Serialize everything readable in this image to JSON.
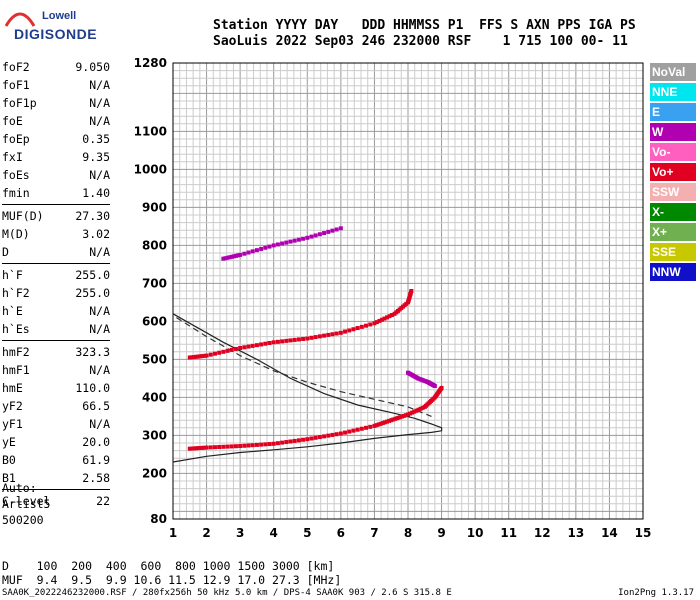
{
  "logo": {
    "line1": "Lowell",
    "line2": "DIGISONDE"
  },
  "header": {
    "line1": "Station YYYY DAY   DDD HHMMSS P1  FFS S AXN PPS IGA PS",
    "line2": "SaoLuis 2022 Sep03 246 232000 RSF    1 715 100 00- 11"
  },
  "params": [
    {
      "k": "foF2",
      "v": "9.050"
    },
    {
      "k": "foF1",
      "v": "N/A"
    },
    {
      "k": "foF1p",
      "v": "N/A"
    },
    {
      "k": "foE",
      "v": "N/A"
    },
    {
      "k": "foEp",
      "v": "0.35"
    },
    {
      "k": "fxI",
      "v": "9.35"
    },
    {
      "k": "foEs",
      "v": "N/A"
    },
    {
      "k": "fmin",
      "v": "1.40"
    },
    {
      "k": "MUF(D)",
      "v": "27.30"
    },
    {
      "k": "M(D)",
      "v": "3.02"
    },
    {
      "k": "D",
      "v": "N/A"
    },
    {
      "k": "h`F",
      "v": "255.0"
    },
    {
      "k": "h`F2",
      "v": "255.0"
    },
    {
      "k": "h`E",
      "v": "N/A"
    },
    {
      "k": "h`Es",
      "v": "N/A"
    },
    {
      "k": "hmF2",
      "v": "323.3"
    },
    {
      "k": "hmF1",
      "v": "N/A"
    },
    {
      "k": "hmE",
      "v": "110.0"
    },
    {
      "k": "yF2",
      "v": "66.5"
    },
    {
      "k": "yF1",
      "v": "N/A"
    },
    {
      "k": "yE",
      "v": "20.0"
    },
    {
      "k": "B0",
      "v": "61.9"
    },
    {
      "k": "B1",
      "v": "2.58"
    },
    {
      "k": "C-level",
      "v": "22"
    }
  ],
  "auto": {
    "l1": "Auto:",
    "l2": "Artist5",
    "l3": "500200"
  },
  "legend": [
    {
      "label": "NoVal",
      "color": "#a0a0a0"
    },
    {
      "label": "NNE",
      "color": "#00e5ee"
    },
    {
      "label": "E",
      "color": "#3aa0f0"
    },
    {
      "label": "W",
      "color": "#b000b0"
    },
    {
      "label": "Vo-",
      "color": "#ff60c0"
    },
    {
      "label": "Vo+",
      "color": "#e00020"
    },
    {
      "label": "SSW",
      "color": "#f4b0b0"
    },
    {
      "label": "X-",
      "color": "#008800"
    },
    {
      "label": "X+",
      "color": "#70b050"
    },
    {
      "label": "SSE",
      "color": "#c8c800"
    },
    {
      "label": "NNW",
      "color": "#1010c8"
    }
  ],
  "footer": {
    "d_line": "D    100  200  400  600  800 1000 1500 3000 [km]",
    "muf_line": "MUF  9.4  9.5  9.9 10.6 11.5 12.9 17.0 27.3 [MHz]",
    "file_line": "SAA0K_2022246232000.RSF / 280fx256h 50 kHz 5.0 km / DPS-4 SAA0K 903 / 2.6 S 315.8 E",
    "version": "Ion2Png 1.3.17"
  },
  "chart_data": {
    "type": "scatter",
    "xlim": [
      1,
      15
    ],
    "ylim": [
      80,
      1280
    ],
    "x_ticks": [
      "1",
      "2",
      "3",
      "4",
      "5",
      "6",
      "7",
      "8",
      "9",
      "10",
      "11",
      "12",
      "13",
      "14",
      "15"
    ],
    "y_ticks": [
      "80",
      "200",
      "300",
      "400",
      "500",
      "600",
      "700",
      "800",
      "900",
      "1000",
      "1100",
      "1280"
    ],
    "grid": true,
    "traces": [
      {
        "name": "",
        "color": "#e00020",
        "points": [
          [
            1.5,
            265
          ],
          [
            2,
            268
          ],
          [
            3,
            272
          ],
          [
            4,
            278
          ],
          [
            5,
            290
          ],
          [
            6,
            305
          ],
          [
            7,
            325
          ],
          [
            7.5,
            340
          ],
          [
            8,
            355
          ],
          [
            8.5,
            375
          ],
          [
            8.8,
            400
          ],
          [
            9.0,
            425
          ]
        ]
      },
      {
        "name": "",
        "color": "#e00020",
        "points": [
          [
            1.5,
            505
          ],
          [
            2,
            510
          ],
          [
            3,
            530
          ],
          [
            4,
            545
          ],
          [
            5,
            555
          ],
          [
            6,
            570
          ],
          [
            7,
            595
          ],
          [
            7.6,
            620
          ],
          [
            8,
            650
          ],
          [
            8.1,
            680
          ]
        ]
      },
      {
        "name": "",
        "color": "#b000b0",
        "points": [
          [
            2.5,
            765
          ],
          [
            3,
            775
          ],
          [
            4,
            800
          ],
          [
            5,
            820
          ],
          [
            6,
            845
          ]
        ]
      },
      {
        "name": "",
        "color": "#b000b0",
        "points": [
          [
            8,
            465
          ],
          [
            8.3,
            450
          ],
          [
            8.6,
            440
          ],
          [
            8.8,
            430
          ]
        ]
      }
    ],
    "profile_curve": [
      [
        1,
        230
      ],
      [
        2,
        245
      ],
      [
        3,
        255
      ],
      [
        4,
        262
      ],
      [
        5,
        270
      ],
      [
        6,
        280
      ],
      [
        7,
        292
      ],
      [
        8,
        302
      ],
      [
        8.7,
        308
      ],
      [
        9,
        312
      ],
      [
        9.0,
        320
      ],
      [
        8.7,
        330
      ],
      [
        8.2,
        345
      ],
      [
        7.5,
        360
      ],
      [
        6.5,
        380
      ],
      [
        5.5,
        410
      ],
      [
        4.5,
        450
      ],
      [
        3.5,
        500
      ],
      [
        2.5,
        545
      ],
      [
        1.6,
        590
      ],
      [
        1,
        620
      ]
    ],
    "dashed_curve": [
      [
        1.1,
        610
      ],
      [
        2,
        560
      ],
      [
        3,
        510
      ],
      [
        4,
        470
      ],
      [
        5,
        440
      ],
      [
        6,
        415
      ],
      [
        7,
        395
      ],
      [
        8,
        375
      ],
      [
        8.7,
        350
      ]
    ]
  }
}
